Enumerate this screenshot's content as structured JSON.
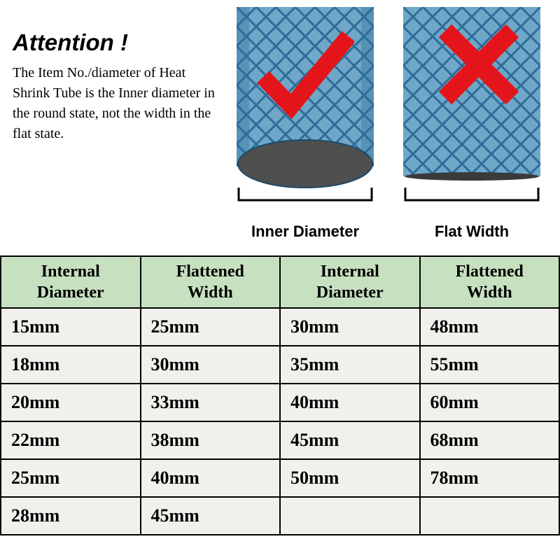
{
  "attention": {
    "title": "Attention !",
    "body": "The Item No./diameter of Heat Shrink Tube is the Inner diameter in the round state, not the width in the flat state."
  },
  "tubes": {
    "pattern": {
      "base_color": "#83b3d1",
      "line_color": "#2e6d99",
      "line_width": 3,
      "spacing": 28
    },
    "left": {
      "label": "Inner Diameter",
      "ellipse_fill": "#4f4f4f",
      "bracket_color": "#000000",
      "mark_color": "#e4151a"
    },
    "right": {
      "label": "Flat Width",
      "slit_fill": "#3a3a3a",
      "bracket_color": "#000000",
      "mark_color": "#e4151a"
    }
  },
  "table": {
    "header_bg": "#c7e1c0",
    "cell_bg": "#f1f0ec",
    "border_color": "#000000",
    "columns": [
      "Internal Diameter",
      "Flattened Width",
      "Internal Diameter",
      "Flattened Width"
    ],
    "rows": [
      [
        "15mm",
        "25mm",
        "30mm",
        "48mm"
      ],
      [
        "18mm",
        "30mm",
        "35mm",
        "55mm"
      ],
      [
        "20mm",
        "33mm",
        "40mm",
        "60mm"
      ],
      [
        "22mm",
        "38mm",
        "45mm",
        "68mm"
      ],
      [
        "25mm",
        "40mm",
        "50mm",
        "78mm"
      ],
      [
        "28mm",
        "45mm",
        "",
        ""
      ]
    ]
  }
}
